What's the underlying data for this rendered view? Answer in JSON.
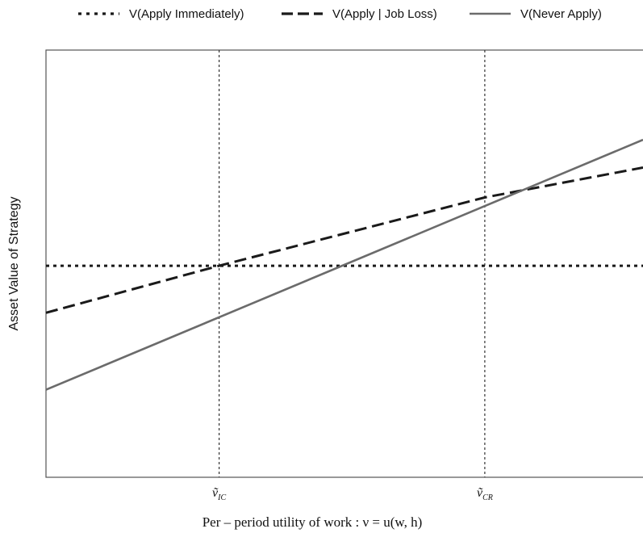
{
  "chart_data": {
    "type": "line",
    "legend_position": "top",
    "grid": false,
    "xlabel": "Per – period  utility  of  work : ν = u(w, h)",
    "ylabel": "Asset Value of Strategy",
    "xlim": [
      0,
      1
    ],
    "ylim": [
      0,
      1
    ],
    "x_ticks": [
      {
        "base": "ṽ",
        "sub": "IC",
        "x": 0.29
      },
      {
        "base": "ṽ",
        "sub": "CR",
        "x": 0.735
      }
    ],
    "reference_lines": [
      {
        "orientation": "vertical",
        "x": 0.29,
        "style": "dotted"
      },
      {
        "orientation": "vertical",
        "x": 0.735,
        "style": "dotted"
      }
    ],
    "series": [
      {
        "name": "V(Apply Immediately)",
        "style": "dotted",
        "color": "#1a1a1a",
        "x": [
          0,
          1
        ],
        "y": [
          0.495,
          0.495
        ]
      },
      {
        "name": "V(Apply | Job Loss)",
        "style": "dashed",
        "color": "#1a1a1a",
        "x": [
          0,
          0.29,
          0.735,
          1
        ],
        "y": [
          0.385,
          0.495,
          0.655,
          0.725
        ]
      },
      {
        "name": "V(Never Apply)",
        "style": "solid",
        "color": "#6b6b6b",
        "x": [
          0,
          1
        ],
        "y": [
          0.205,
          0.79
        ]
      }
    ]
  }
}
